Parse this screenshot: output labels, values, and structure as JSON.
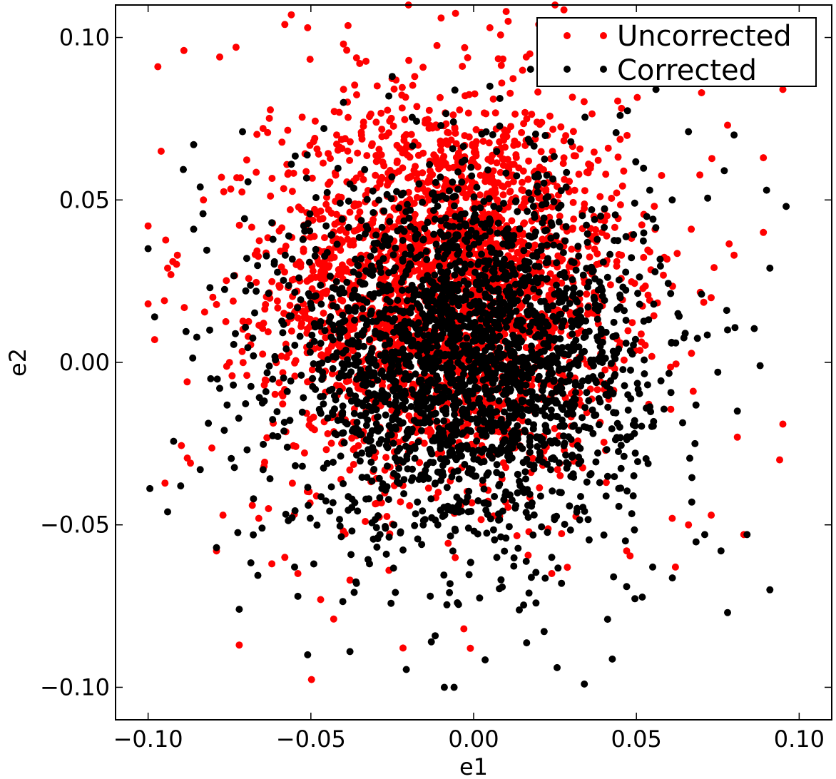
{
  "chart_data": {
    "type": "scatter",
    "title": "",
    "xlabel": "e1",
    "ylabel": "e2",
    "xlim": [
      -0.11,
      0.11
    ],
    "ylim": [
      -0.11,
      0.11
    ],
    "x_ticks": [
      -0.1,
      -0.05,
      0.0,
      0.05,
      0.1
    ],
    "y_ticks": [
      -0.1,
      -0.05,
      0.0,
      0.05,
      0.1
    ],
    "x_tick_labels": [
      "−0.10",
      "−0.05",
      "0.00",
      "0.05",
      "0.10"
    ],
    "y_tick_labels": [
      "−0.10",
      "−0.05",
      "0.00",
      "0.05",
      "0.10"
    ],
    "grid": false,
    "legend_position": "top-right",
    "series": [
      {
        "name": "Uncorrected",
        "color": "#ff0000",
        "center": [
          -0.008,
          0.024
        ],
        "spread": [
          0.027,
          0.029
        ],
        "count": 2600,
        "values": [
          [
            -0.1,
            0.018
          ],
          [
            -0.097,
            0.091
          ],
          [
            -0.096,
            0.065
          ],
          [
            -0.094,
            0.029
          ],
          [
            -0.089,
            0.096
          ],
          [
            -0.088,
            -0.006
          ],
          [
            -0.083,
            0.05
          ],
          [
            -0.079,
            -0.058
          ],
          [
            -0.078,
            0.094
          ],
          [
            -0.077,
            -0.047
          ],
          [
            -0.073,
            0.097
          ],
          [
            -0.072,
            -0.087
          ],
          [
            -0.066,
            -0.048
          ],
          [
            -0.058,
            0.104
          ],
          [
            -0.056,
            0.107
          ],
          [
            -0.051,
            0.103
          ],
          [
            -0.04,
            0.098
          ],
          [
            -0.035,
            0.092
          ],
          [
            -0.02,
            0.11
          ],
          [
            -0.01,
            0.106
          ],
          [
            0.005,
            0.103
          ],
          [
            0.01,
            0.108
          ],
          [
            0.02,
            0.104
          ],
          [
            0.025,
            0.11
          ],
          [
            0.032,
            0.094
          ],
          [
            0.04,
            0.09
          ],
          [
            0.058,
            0.091
          ],
          [
            0.063,
            0.088
          ],
          [
            0.07,
            0.083
          ],
          [
            0.095,
            0.084
          ],
          [
            0.078,
            0.073
          ],
          [
            0.089,
            0.063
          ],
          [
            0.089,
            0.04
          ],
          [
            0.08,
            0.033
          ],
          [
            0.095,
            -0.019
          ],
          [
            0.094,
            -0.03
          ],
          [
            0.083,
            -0.053
          ],
          [
            0.081,
            -0.023
          ],
          [
            0.073,
            -0.047
          ],
          [
            0.066,
            -0.05
          ],
          [
            0.061,
            -0.048
          ],
          [
            0.062,
            -0.063
          ],
          [
            0.047,
            -0.058
          ],
          [
            0.024,
            -0.065
          ],
          [
            -0.003,
            -0.082
          ],
          [
            -0.001,
            -0.088
          ],
          [
            -0.026,
            -0.064
          ],
          [
            -0.038,
            -0.067
          ],
          [
            -0.043,
            -0.079
          ],
          [
            -0.047,
            -0.073
          ],
          [
            -0.054,
            -0.065
          ],
          [
            -0.058,
            -0.06
          ],
          [
            -0.062,
            -0.062
          ],
          [
            -0.068,
            -0.044
          ],
          [
            -0.087,
            -0.031
          ],
          [
            -0.1,
            0.042
          ],
          [
            -0.098,
            0.007
          ],
          [
            -0.095,
            0.019
          ],
          [
            -0.091,
            0.033
          ],
          [
            -0.093,
            0.027
          ]
        ]
      },
      {
        "name": "Corrected",
        "color": "#000000",
        "center": [
          -0.002,
          0.001
        ],
        "spread": [
          0.027,
          0.027
        ],
        "count": 2600,
        "values": [
          [
            -0.1,
            0.035
          ],
          [
            -0.098,
            0.014
          ],
          [
            -0.094,
            -0.046
          ],
          [
            -0.09,
            -0.038
          ],
          [
            -0.086,
            0.041
          ],
          [
            -0.086,
            0.067
          ],
          [
            -0.084,
            0.054
          ],
          [
            -0.084,
            -0.033
          ],
          [
            -0.081,
            0.023
          ],
          [
            -0.079,
            -0.057
          ],
          [
            -0.072,
            -0.076
          ],
          [
            -0.071,
            0.071
          ],
          [
            -0.065,
            -0.051
          ],
          [
            -0.055,
            -0.063
          ],
          [
            -0.054,
            -0.072
          ],
          [
            -0.051,
            -0.09
          ],
          [
            -0.046,
            0.072
          ],
          [
            -0.038,
            -0.089
          ],
          [
            -0.036,
            -0.068
          ],
          [
            -0.032,
            -0.062
          ],
          [
            -0.025,
            0.088
          ],
          [
            -0.013,
            -0.086
          ],
          [
            -0.009,
            -0.1
          ],
          [
            -0.006,
            -0.1
          ],
          [
            -0.005,
            -0.074
          ],
          [
            0.005,
            0.085
          ],
          [
            0.017,
            -0.071
          ],
          [
            0.024,
            -0.06
          ],
          [
            0.027,
            -0.068
          ],
          [
            0.034,
            -0.099
          ],
          [
            0.043,
            -0.066
          ],
          [
            0.047,
            -0.069
          ],
          [
            0.055,
            -0.063
          ],
          [
            0.056,
            0.084
          ],
          [
            0.067,
            -0.043
          ],
          [
            0.071,
            -0.053
          ],
          [
            0.076,
            -0.058
          ],
          [
            0.078,
            -0.077
          ],
          [
            0.077,
            0.059
          ],
          [
            0.08,
            0.07
          ],
          [
            0.084,
            -0.053
          ],
          [
            0.088,
            -0.001
          ],
          [
            0.09,
            0.053
          ],
          [
            0.091,
            0.029
          ],
          [
            0.091,
            -0.07
          ],
          [
            0.096,
            0.048
          ],
          [
            0.066,
            0.071
          ],
          [
            0.061,
            0.05
          ],
          [
            0.045,
            0.076
          ],
          [
            0.04,
            0.088
          ],
          [
            -0.04,
            0.08
          ],
          [
            -0.056,
            0.061
          ],
          [
            -0.062,
            0.043
          ],
          [
            -0.07,
            0.022
          ],
          [
            -0.078,
            -0.008
          ],
          [
            0.07,
            0.021
          ],
          [
            0.078,
            0.01
          ],
          [
            0.081,
            -0.015
          ],
          [
            0.075,
            -0.003
          ],
          [
            0.068,
            -0.025
          ]
        ]
      }
    ]
  }
}
